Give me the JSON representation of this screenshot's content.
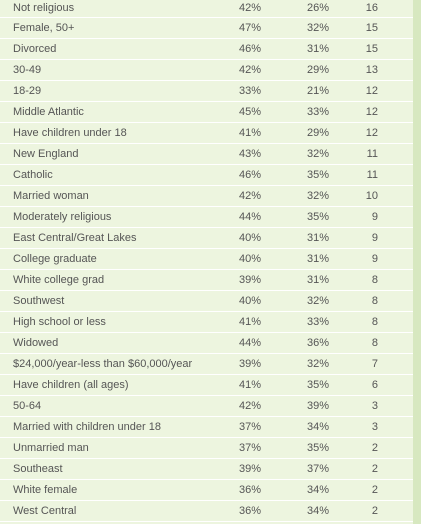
{
  "rows": [
    {
      "label": "Not religious",
      "col1": "42%",
      "col2": "26%",
      "col3": "16"
    },
    {
      "label": "Female, 50+",
      "col1": "47%",
      "col2": "32%",
      "col3": "15"
    },
    {
      "label": "Divorced",
      "col1": "46%",
      "col2": "31%",
      "col3": "15"
    },
    {
      "label": "30-49",
      "col1": "42%",
      "col2": "29%",
      "col3": "13"
    },
    {
      "label": "18-29",
      "col1": "33%",
      "col2": "21%",
      "col3": "12"
    },
    {
      "label": "Middle Atlantic",
      "col1": "45%",
      "col2": "33%",
      "col3": "12"
    },
    {
      "label": "Have children under 18",
      "col1": "41%",
      "col2": "29%",
      "col3": "12"
    },
    {
      "label": "New England",
      "col1": "43%",
      "col2": "32%",
      "col3": "11"
    },
    {
      "label": "Catholic",
      "col1": "46%",
      "col2": "35%",
      "col3": "11"
    },
    {
      "label": "Married woman",
      "col1": "42%",
      "col2": "32%",
      "col3": "10"
    },
    {
      "label": "Moderately religious",
      "col1": "44%",
      "col2": "35%",
      "col3": "9"
    },
    {
      "label": "East Central/Great Lakes",
      "col1": "40%",
      "col2": "31%",
      "col3": "9"
    },
    {
      "label": "College graduate",
      "col1": "40%",
      "col2": "31%",
      "col3": "9"
    },
    {
      "label": "White college grad",
      "col1": "39%",
      "col2": "31%",
      "col3": "8"
    },
    {
      "label": "Southwest",
      "col1": "40%",
      "col2": "32%",
      "col3": "8"
    },
    {
      "label": "High school or less",
      "col1": "41%",
      "col2": "33%",
      "col3": "8"
    },
    {
      "label": "Widowed",
      "col1": "44%",
      "col2": "36%",
      "col3": "8"
    },
    {
      "label": "$24,000/year-less than $60,000/year",
      "col1": "39%",
      "col2": "32%",
      "col3": "7"
    },
    {
      "label": "Have children (all ages)",
      "col1": "41%",
      "col2": "35%",
      "col3": "6"
    },
    {
      "label": "50-64",
      "col1": "42%",
      "col2": "39%",
      "col3": "3"
    },
    {
      "label": "Married with children under 18",
      "col1": "37%",
      "col2": "34%",
      "col3": "3"
    },
    {
      "label": "Unmarried man",
      "col1": "37%",
      "col2": "35%",
      "col3": "2"
    },
    {
      "label": "Southeast",
      "col1": "39%",
      "col2": "37%",
      "col3": "2"
    },
    {
      "label": "White female",
      "col1": "36%",
      "col2": "34%",
      "col3": "2"
    },
    {
      "label": "West Central",
      "col1": "36%",
      "col2": "34%",
      "col3": "2"
    }
  ]
}
